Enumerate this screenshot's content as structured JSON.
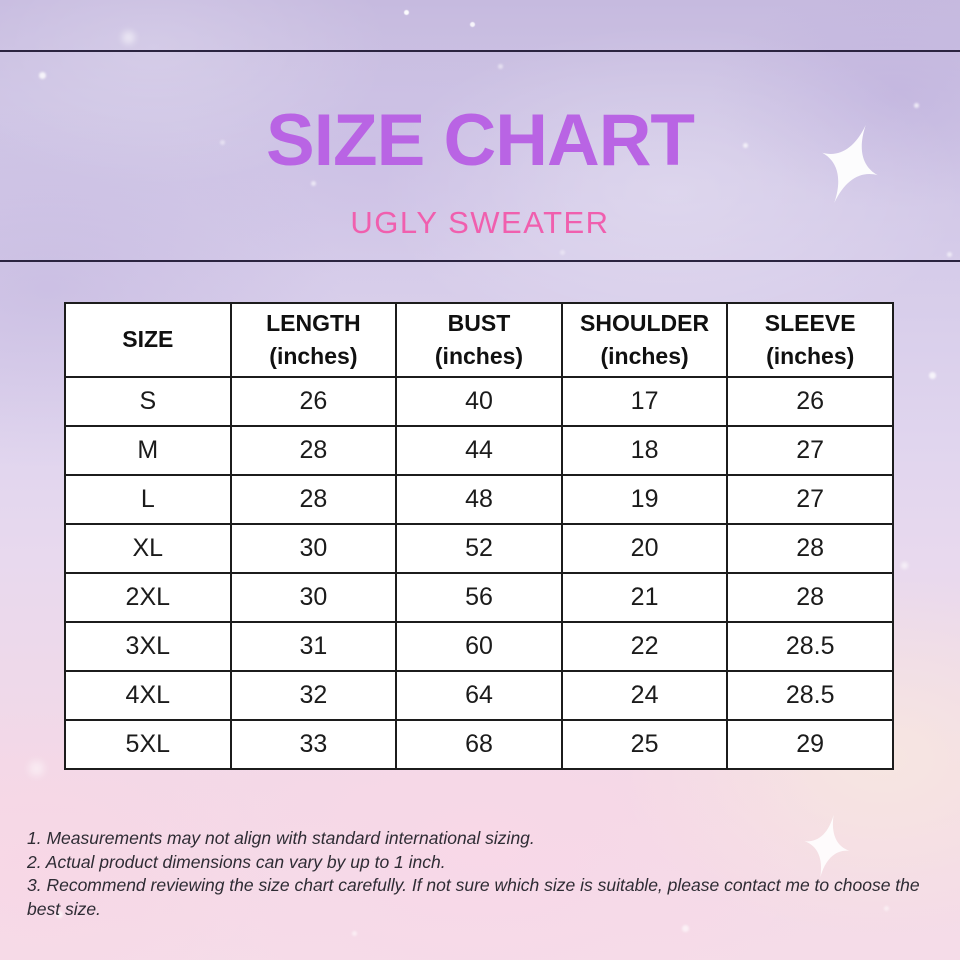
{
  "header": {
    "title": "SIZE CHART",
    "subtitle": "UGLY SWEATER"
  },
  "colors": {
    "title": "#b964e4",
    "subtitle": "#f05fae",
    "table_border": "#1c1c1c",
    "divider": "#2b2440",
    "notes_text": "#2e2c34",
    "background_top": "#c6badf",
    "background_bottom": "#f5dce8"
  },
  "table": {
    "columns": [
      {
        "label": "SIZE",
        "unit": ""
      },
      {
        "label": "LENGTH",
        "unit": "(inches)"
      },
      {
        "label": "BUST",
        "unit": "(inches)"
      },
      {
        "label": "SHOULDER",
        "unit": "(inches)"
      },
      {
        "label": "SLEEVE",
        "unit": "(inches)"
      }
    ],
    "rows": [
      [
        "S",
        "26",
        "40",
        "17",
        "26"
      ],
      [
        "M",
        "28",
        "44",
        "18",
        "27"
      ],
      [
        "L",
        "28",
        "48",
        "19",
        "27"
      ],
      [
        "XL",
        "30",
        "52",
        "20",
        "28"
      ],
      [
        "2XL",
        "30",
        "56",
        "21",
        "28"
      ],
      [
        "3XL",
        "31",
        "60",
        "22",
        "28.5"
      ],
      [
        "4XL",
        "32",
        "64",
        "24",
        "28.5"
      ],
      [
        "5XL",
        "33",
        "68",
        "25",
        "29"
      ]
    ]
  },
  "notes": [
    "1. Measurements may not align with standard international sizing.",
    "2. Actual product dimensions can vary by up to 1 inch.",
    "3. Recommend reviewing the size chart carefully. If not sure which size is suitable, please contact me to choose the best size."
  ],
  "decor": {
    "sparkle_icon": "4-point-star",
    "speckles": "white-dots"
  },
  "chart_data": {
    "type": "table",
    "title": "SIZE CHART",
    "subtitle": "UGLY SWEATER",
    "columns": [
      "SIZE",
      "LENGTH (inches)",
      "BUST (inches)",
      "SHOULDER (inches)",
      "SLEEVE (inches)"
    ],
    "rows": [
      [
        "S",
        26,
        40,
        17,
        26
      ],
      [
        "M",
        28,
        44,
        18,
        27
      ],
      [
        "L",
        28,
        48,
        19,
        27
      ],
      [
        "XL",
        30,
        52,
        20,
        28
      ],
      [
        "2XL",
        30,
        56,
        21,
        28
      ],
      [
        "3XL",
        31,
        60,
        22,
        28.5
      ],
      [
        "4XL",
        32,
        64,
        24,
        28.5
      ],
      [
        "5XL",
        33,
        68,
        25,
        29
      ]
    ],
    "notes": [
      "1. Measurements may not align with standard international sizing.",
      "2. Actual product dimensions can vary by up to 1 inch.",
      "3. Recommend reviewing the size chart carefully. If not sure which size is suitable, please contact me to choose the best size."
    ]
  }
}
